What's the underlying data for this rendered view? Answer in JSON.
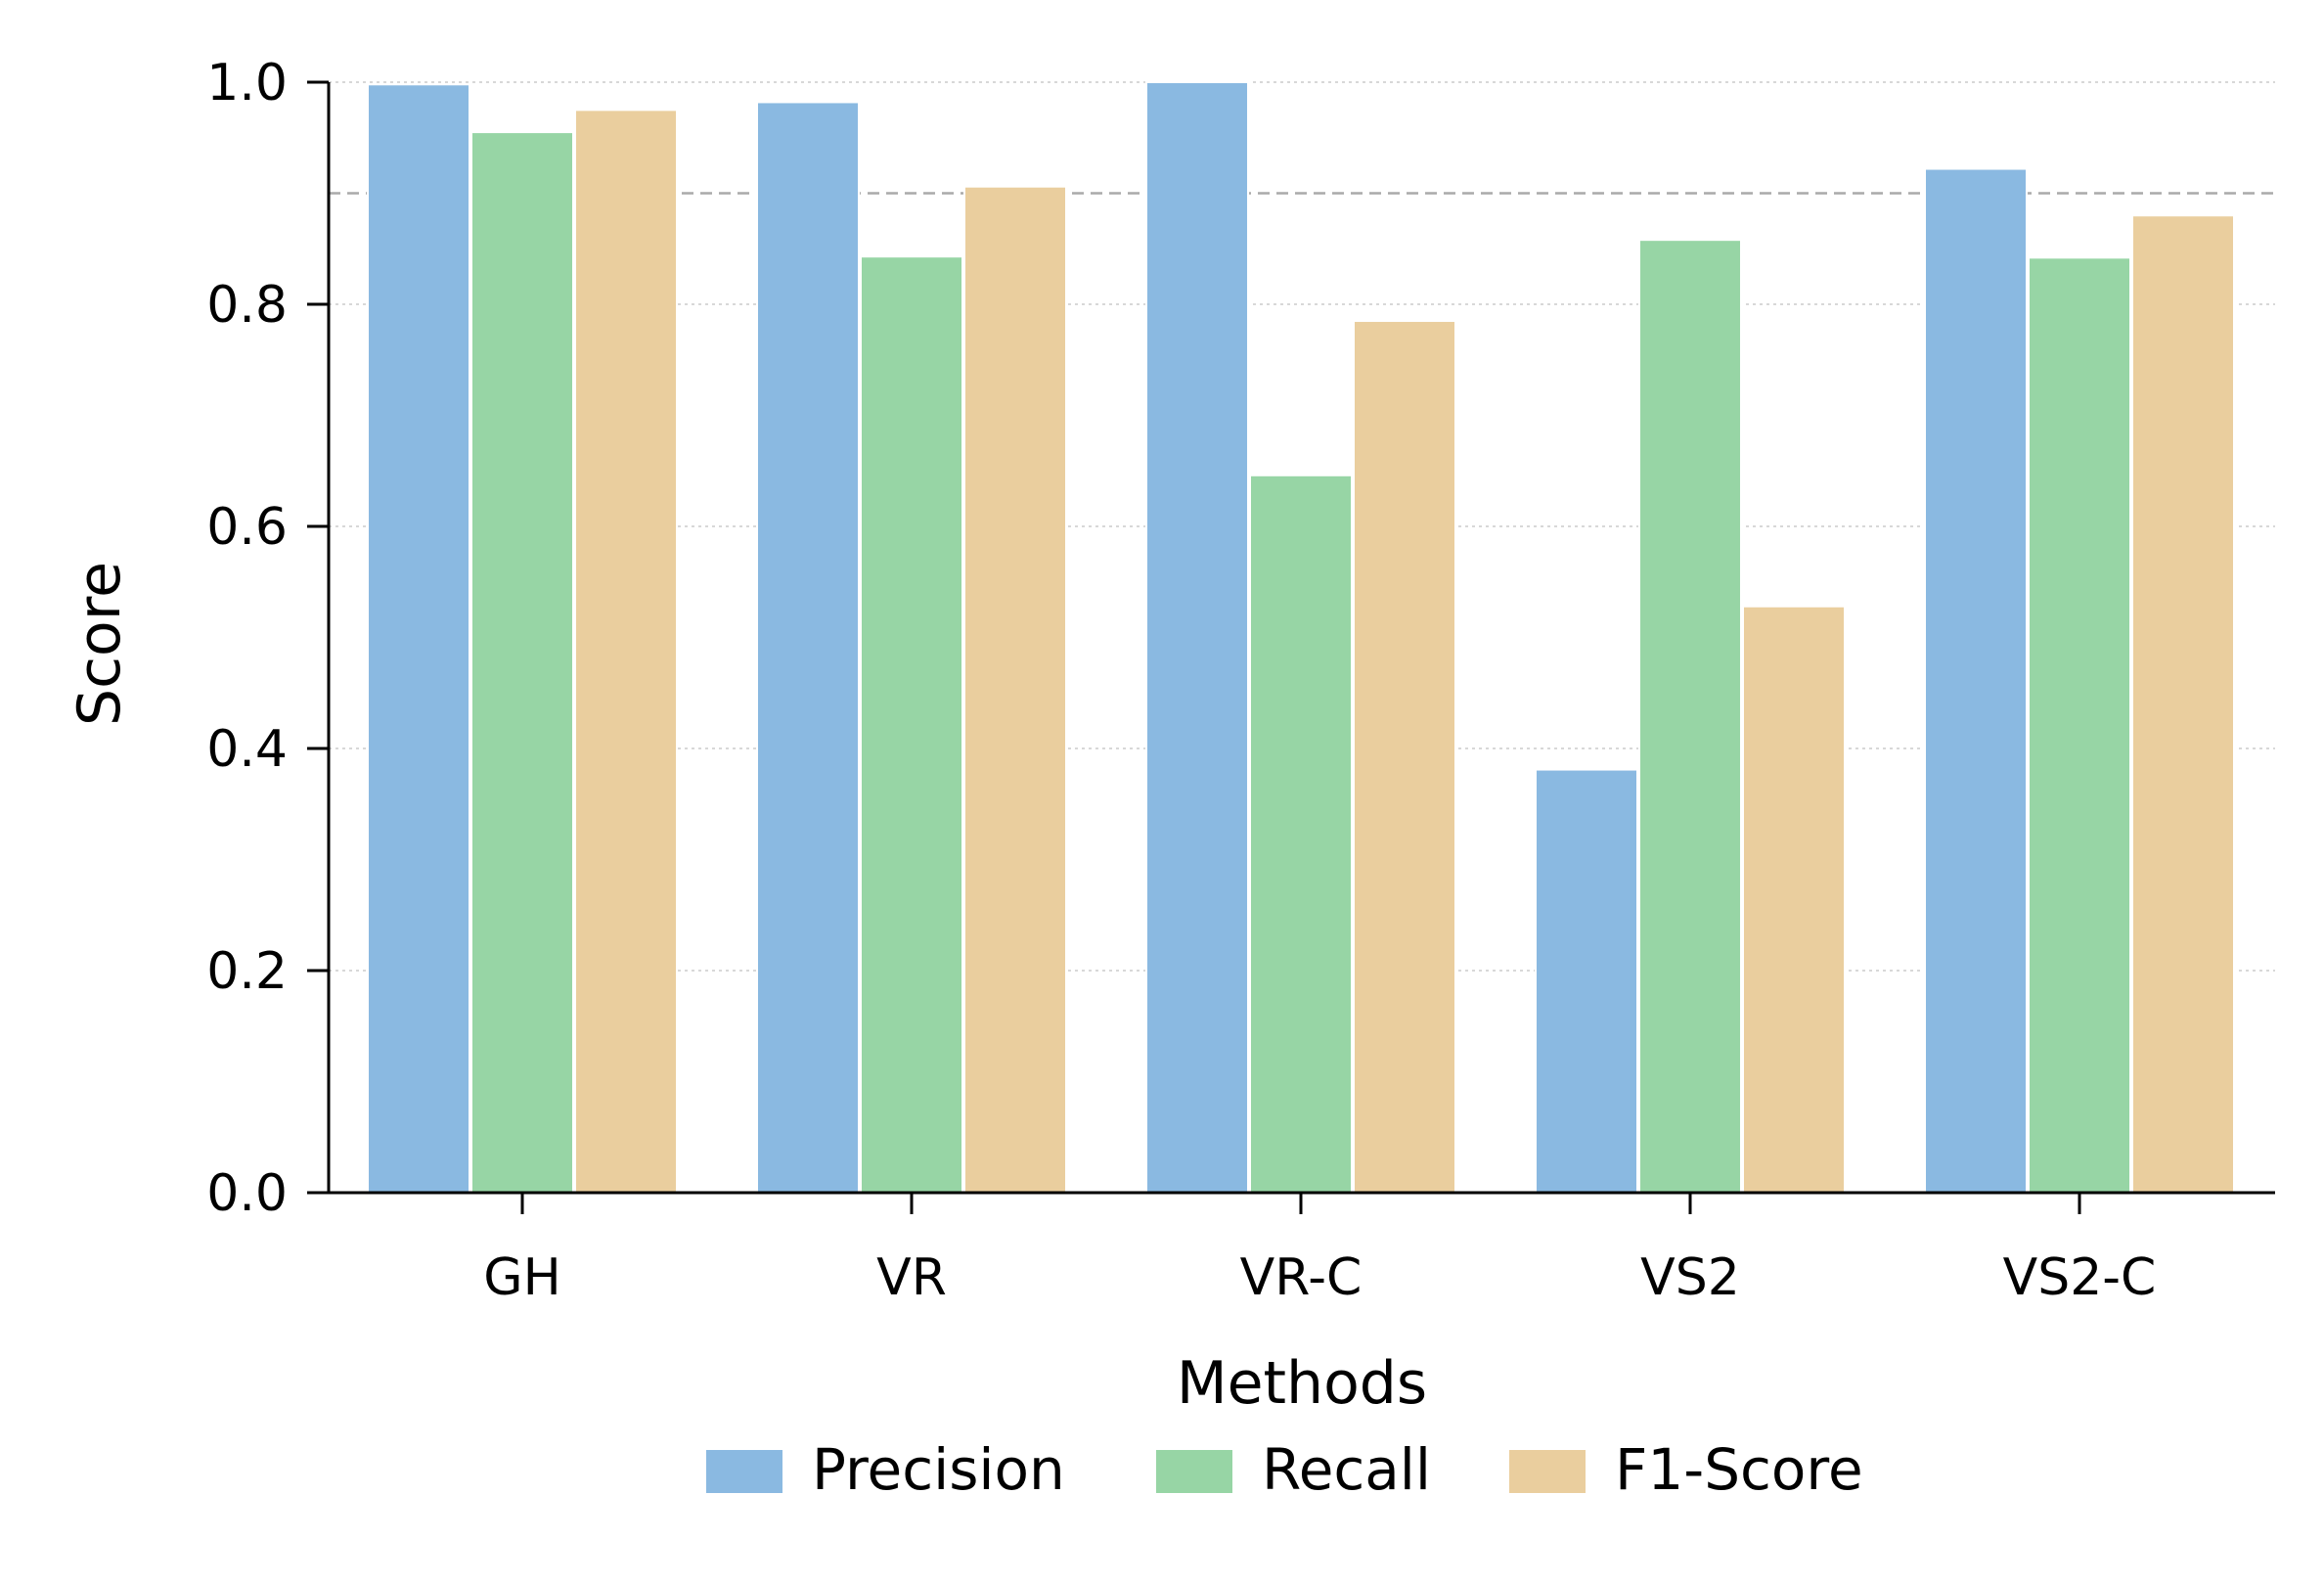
{
  "chart_data": {
    "type": "bar",
    "title": "",
    "xlabel": "Methods",
    "ylabel": "Score",
    "categories": [
      "GH",
      "VR",
      "VR-C",
      "VS2",
      "VS2-C"
    ],
    "series": [
      {
        "name": "Precision",
        "color": "#8ab9e1",
        "values": [
          0.998,
          0.982,
          1.0,
          0.381,
          0.922
        ]
      },
      {
        "name": "Recall",
        "color": "#97d5a5",
        "values": [
          0.955,
          0.843,
          0.646,
          0.858,
          0.842
        ]
      },
      {
        "name": "F1-Score",
        "color": "#eace9e",
        "values": [
          0.975,
          0.906,
          0.785,
          0.528,
          0.88
        ]
      }
    ],
    "ylim": [
      0,
      1.0
    ],
    "yticks": [
      0.0,
      0.2,
      0.4,
      0.6,
      0.8,
      1.0
    ],
    "ytick_labels": [
      "0.0",
      "0.2",
      "0.4",
      "0.6",
      "0.8",
      "1.0"
    ],
    "reference_line": 0.9,
    "grid": "y-dotted",
    "legend_position": "bottom-center"
  }
}
